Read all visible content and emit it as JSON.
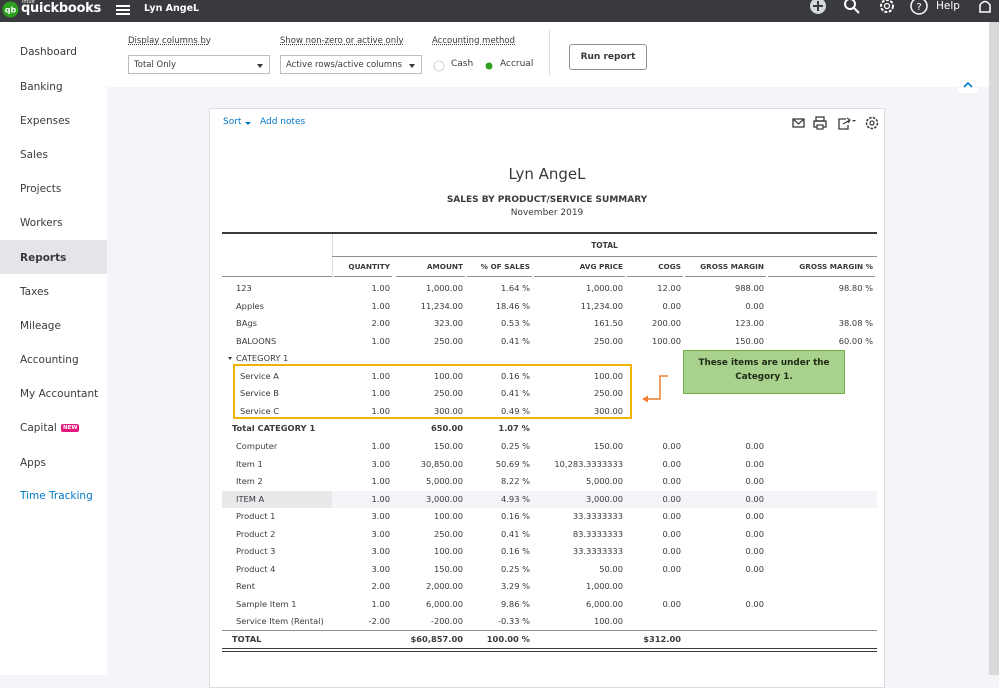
{
  "topbar": {
    "logo_small": "intuit",
    "logo": "quickbooks",
    "company": "Lyn AngeL",
    "help": "Help"
  },
  "sidebar": [
    "Dashboard",
    "Banking",
    "Expenses",
    "Sales",
    "Projects",
    "Workers",
    "Reports",
    "Taxes",
    "Mileage",
    "Accounting",
    "My Accountant",
    "Capital",
    "Apps",
    "Time Tracking"
  ],
  "sidebar_badge": "NEW",
  "toolbar": {
    "display_label": "Display columns by",
    "display_value": "Total Only",
    "show_label": "Show non-zero or active only",
    "show_value": "Active rows/active columns",
    "method_label": "Accounting method",
    "cash": "Cash",
    "accrual": "Accrual",
    "run": "Run report"
  },
  "report": {
    "sort": "Sort",
    "add_notes": "Add notes",
    "company": "Lyn AngeL",
    "title": "SALES BY PRODUCT/SERVICE SUMMARY",
    "period": "November 2019",
    "group_header": "TOTAL",
    "columns": [
      "QUANTITY",
      "AMOUNT",
      "% OF SALES",
      "AVG PRICE",
      "COGS",
      "GROSS MARGIN",
      "GROSS MARGIN %"
    ],
    "rows": [
      [
        "123",
        "1.00",
        "1,000.00",
        "1.64 %",
        "1,000.00",
        "12.00",
        "988.00",
        "98.80 %"
      ],
      [
        "Apples",
        "1.00",
        "11,234.00",
        "18.46 %",
        "11,234.00",
        "0.00",
        "0.00",
        null
      ],
      [
        "BAgs",
        "2.00",
        "323.00",
        "0.53 %",
        "161.50",
        "200.00",
        "123.00",
        "38.08 %"
      ],
      [
        "BALOONS",
        "1.00",
        "250.00",
        "0.41 %",
        "250.00",
        "100.00",
        "150.00",
        "60.00 %"
      ],
      [
        "CATEGORY 1",
        null,
        null,
        null,
        null,
        null,
        null,
        null
      ],
      [
        "Service A",
        "1.00",
        "100.00",
        "0.16 %",
        "100.00",
        null,
        null,
        null
      ],
      [
        "Service B",
        "1.00",
        "250.00",
        "0.41 %",
        "250.00",
        null,
        null,
        null
      ],
      [
        "Service C",
        "1.00",
        "300.00",
        "0.49 %",
        "300.00",
        null,
        null,
        null
      ],
      [
        "Total CATEGORY 1",
        null,
        "650.00",
        "1.07 %",
        null,
        null,
        null,
        null
      ],
      [
        "Computer",
        "1.00",
        "150.00",
        "0.25 %",
        "150.00",
        "0.00",
        "0.00",
        null
      ],
      [
        "Item 1",
        "3.00",
        "30,850.00",
        "50.69 %",
        "10,283.3333333",
        "0.00",
        "0.00",
        null
      ],
      [
        "Item 2",
        "1.00",
        "5,000.00",
        "8.22 %",
        "5,000.00",
        "0.00",
        "0.00",
        null
      ],
      [
        "ITEM A",
        "1.00",
        "3,000.00",
        "4.93 %",
        "3,000.00",
        "0.00",
        "0.00",
        null
      ],
      [
        "Product 1",
        "3.00",
        "100.00",
        "0.16 %",
        "33.3333333",
        "0.00",
        "0.00",
        null
      ],
      [
        "Product 2",
        "3.00",
        "250.00",
        "0.41 %",
        "83.3333333",
        "0.00",
        "0.00",
        null
      ],
      [
        "Product 3",
        "3.00",
        "100.00",
        "0.16 %",
        "33.3333333",
        "0.00",
        "0.00",
        null
      ],
      [
        "Product 4",
        "3.00",
        "150.00",
        "0.25 %",
        "50.00",
        "0.00",
        "0.00",
        null
      ],
      [
        "Rent",
        "2.00",
        "2,000.00",
        "3.29 %",
        "1,000.00",
        null,
        null,
        null
      ],
      [
        "Sample Item 1",
        "1.00",
        "6,000.00",
        "9.86 %",
        "6,000.00",
        "0.00",
        "0.00",
        null
      ],
      [
        "Service Item (Rental)",
        "-2.00",
        "-200.00",
        "-0.33 %",
        "100.00",
        null,
        null,
        null
      ],
      [
        "TOTAL",
        null,
        "$60,857.00",
        "100.00 %",
        null,
        "$312.00",
        null,
        null
      ]
    ]
  },
  "callout": "These items are under the Category 1."
}
